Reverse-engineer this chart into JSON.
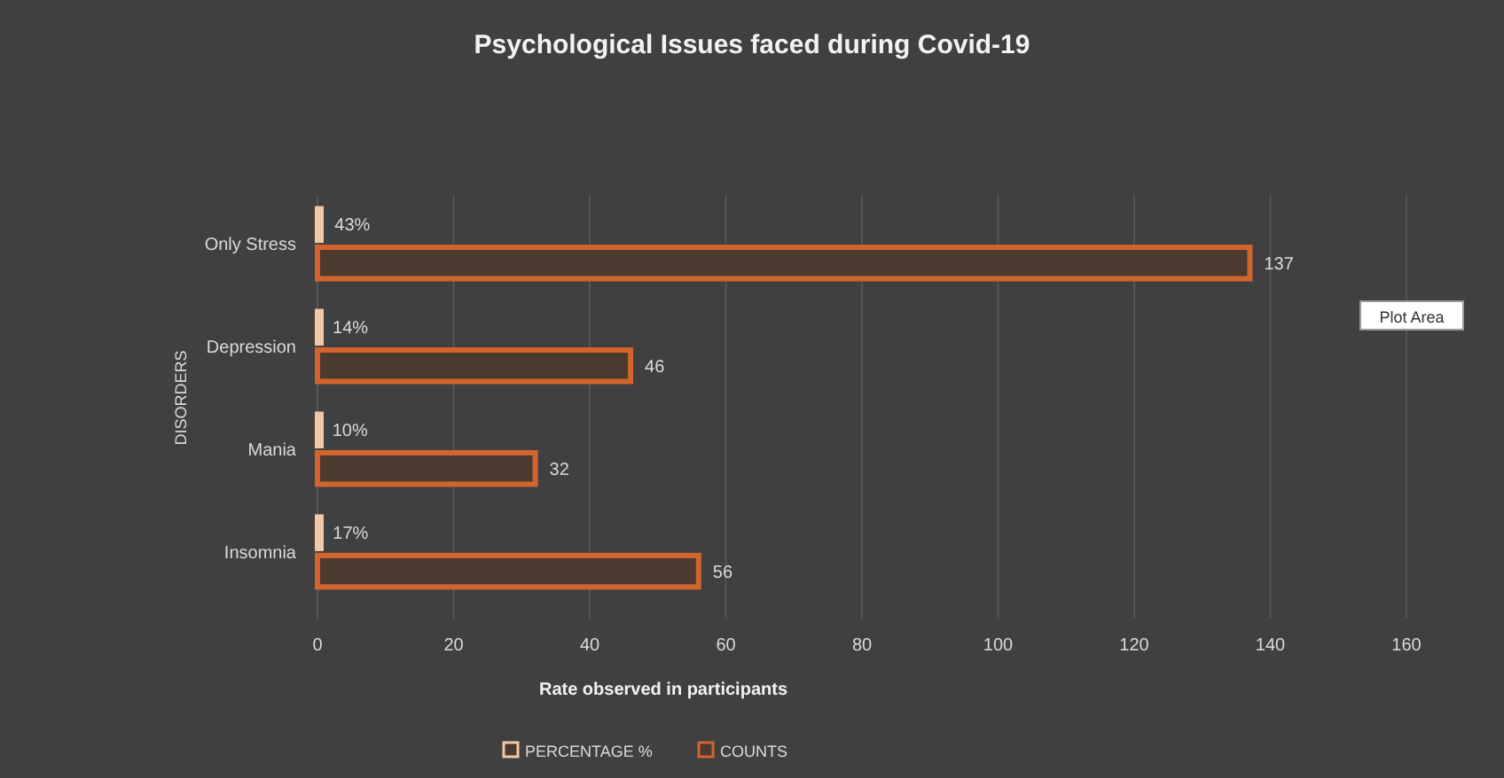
{
  "chart_data": {
    "type": "bar",
    "orientation": "horizontal",
    "title": "Psychological Issues faced during Covid-19",
    "xlabel": "Rate observed in participants",
    "ylabel": "DISORDERS",
    "categories": [
      "Only Stress",
      "Depression",
      "Mania",
      "Insomnia"
    ],
    "series": [
      {
        "name": "PERCENTAGE %",
        "color": "#f0c8a8",
        "values": [
          0.43,
          0.14,
          0.1,
          0.17
        ],
        "value_labels": [
          "43%",
          "14%",
          "10%",
          "17%"
        ]
      },
      {
        "name": "COUNTS",
        "color": "#d2652d",
        "values": [
          137,
          46,
          32,
          56
        ],
        "value_labels": [
          "137",
          "46",
          "32",
          "56"
        ]
      }
    ],
    "xlim": [
      0,
      160
    ],
    "xticks": [
      0,
      20,
      40,
      60,
      80,
      100,
      120,
      140,
      160
    ],
    "grid": "x",
    "legend": "bottom",
    "annotations": [
      "Plot Area"
    ]
  }
}
